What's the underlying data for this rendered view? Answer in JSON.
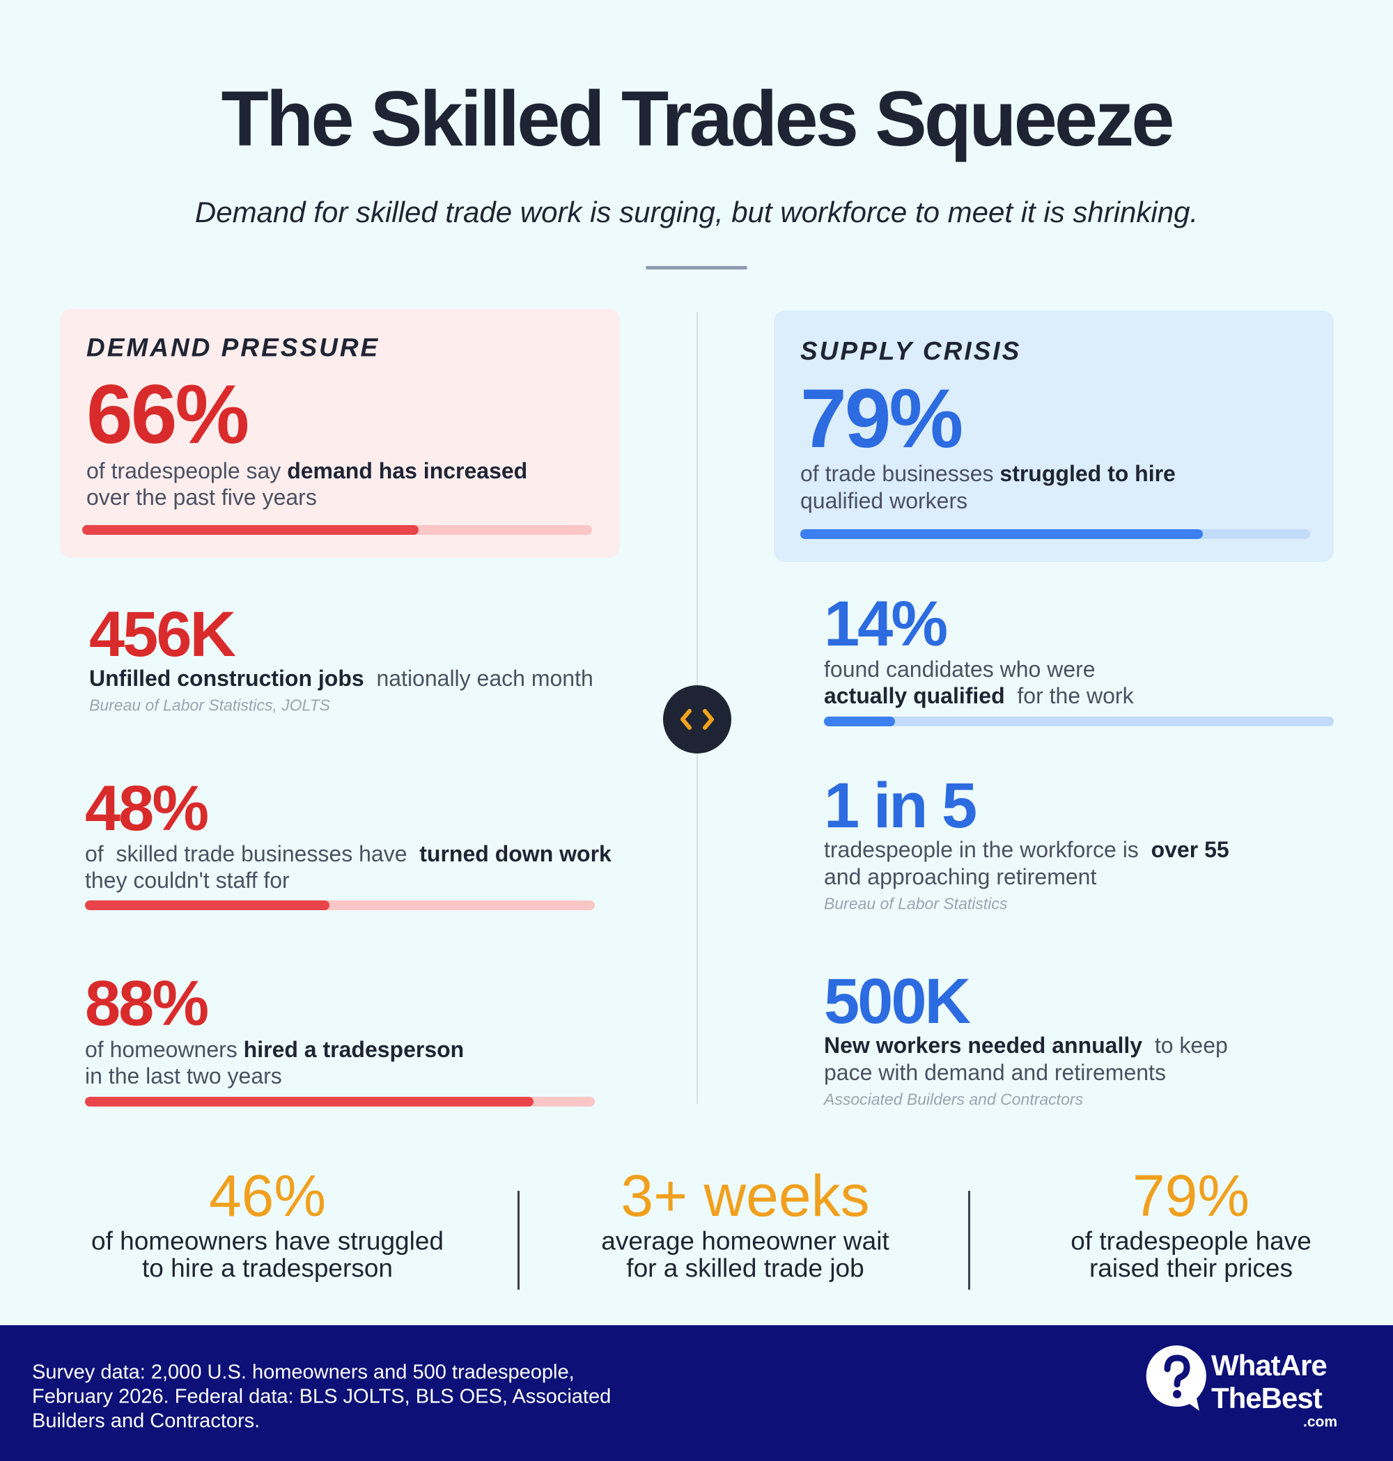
{
  "header": {
    "title": "The Skilled Trades Squeeze",
    "subtitle": "Demand for skilled trade work is surging, but workforce to meet it is shrinking."
  },
  "demand": {
    "heading": "DEMAND PRESSURE",
    "stats": [
      {
        "value": 66,
        "label": "66%",
        "lines": [
          [
            {
              "t": "of tradespeople say "
            },
            {
              "t": "demand has increased",
              "b": true
            }
          ],
          [
            {
              "t": "over the past five years"
            }
          ]
        ]
      },
      {
        "label": "456K",
        "lines": [
          [
            {
              "t": "Unfilled construction jobs",
              "b": true
            },
            {
              "t": "  nationally each month"
            }
          ]
        ],
        "source": "Bureau of Labor Statistics, JOLTS"
      },
      {
        "value": 48,
        "label": "48%",
        "lines": [
          [
            {
              "t": "of  skilled trade businesses have  "
            },
            {
              "t": "turned down work",
              "b": true
            }
          ],
          [
            {
              "t": "they couldn't staff for"
            }
          ]
        ]
      },
      {
        "value": 88,
        "label": "88%",
        "lines": [
          [
            {
              "t": "of homeowners "
            },
            {
              "t": "hired a tradesperson",
              "b": true
            }
          ],
          [
            {
              "t": "in the last two years"
            }
          ]
        ]
      }
    ]
  },
  "supply": {
    "heading": "SUPPLY CRISIS",
    "stats": [
      {
        "value": 79,
        "label": "79%",
        "lines": [
          [
            {
              "t": "of trade businesses "
            },
            {
              "t": "struggled to hire",
              "b": true
            }
          ],
          [
            {
              "t": "qualified workers"
            }
          ]
        ]
      },
      {
        "value": 14,
        "label": "14%",
        "lines": [
          [
            {
              "t": "found candidates who were"
            }
          ],
          [
            {
              "t": "actually qualified",
              "b": true
            },
            {
              "t": "  for the work"
            }
          ]
        ]
      },
      {
        "label": "1 in 5",
        "lines": [
          [
            {
              "t": "tradespeople in the workforce is  "
            },
            {
              "t": "over 55",
              "b": true
            }
          ],
          [
            {
              "t": "and approaching retirement"
            }
          ]
        ],
        "source": "Bureau of Labor Statistics"
      },
      {
        "label": "500K",
        "lines": [
          [
            {
              "t": "New workers needed annually",
              "b": true
            },
            {
              "t": "  to keep"
            }
          ],
          [
            {
              "t": "pace with demand and retirements"
            }
          ]
        ],
        "source": "Associated Builders and Contractors"
      }
    ]
  },
  "consumer": [
    {
      "label": "46%",
      "lines": [
        "of homeowners have struggled",
        "to hire a tradesperson"
      ]
    },
    {
      "label": "3+ weeks",
      "lines": [
        "average homeowner wait",
        "for a skilled trade job"
      ]
    },
    {
      "label": "79%",
      "lines": [
        "of tradespeople have",
        "raised their prices"
      ]
    }
  ],
  "footer": {
    "note": [
      "Survey data: 2,000 U.S. homeowners and 500 tradespeople,",
      "February 2026. Federal data: BLS JOLTS, BLS OES, Associated",
      "Builders and Contractors."
    ],
    "logo": [
      "WhatAre",
      "TheBest",
      ".com"
    ]
  }
}
